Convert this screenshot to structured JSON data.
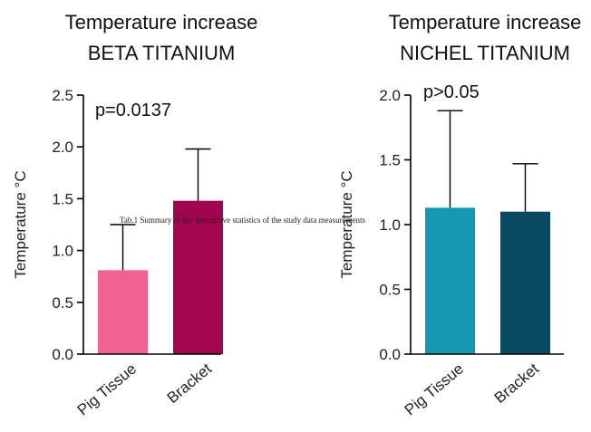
{
  "chart_data": [
    {
      "type": "bar",
      "title": [
        "Temperature increase",
        "BETA TITANIUM"
      ],
      "ylabel": "Temperature °C",
      "xlabel": "",
      "ylim": [
        0,
        2.5
      ],
      "yticks": [
        0.0,
        0.5,
        1.0,
        1.5,
        2.0,
        2.5
      ],
      "ytick_labels": [
        "0.0",
        "0.5",
        "1.0",
        "1.5",
        "2.0",
        "2.5"
      ],
      "categories": [
        "Pig Tissue",
        "Bracket"
      ],
      "values": [
        0.81,
        1.48
      ],
      "errors": [
        0.44,
        0.5
      ],
      "colors": [
        "#f06292",
        "#a0054e"
      ],
      "annotation": "p=0.0137",
      "grid": false
    },
    {
      "type": "bar",
      "title": [
        "Temperature increase",
        "NICHEL TITANIUM"
      ],
      "ylabel": "Temperature °C",
      "xlabel": "",
      "ylim": [
        0,
        2.0
      ],
      "yticks": [
        0.0,
        0.5,
        1.0,
        1.5,
        2.0
      ],
      "ytick_labels": [
        "0.0",
        "0.5",
        "1.0",
        "1.5",
        "2.0"
      ],
      "categories": [
        "Pig Tissue",
        "Bracket"
      ],
      "values": [
        1.13,
        1.1
      ],
      "errors": [
        0.75,
        0.37
      ],
      "colors": [
        "#1596b3",
        "#0a4a60"
      ],
      "annotation": "p>0.05",
      "grid": false
    }
  ],
  "caption": "Tab.1 Summary of the descriptive statistics of the study data measurements"
}
